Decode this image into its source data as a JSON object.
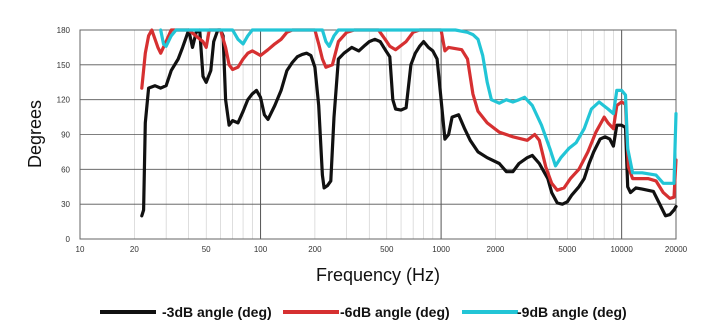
{
  "chart_data": {
    "type": "line",
    "xlabel": "Frequency (Hz)",
    "ylabel": "Degrees",
    "x_scale": "log",
    "xlim": [
      10,
      20000
    ],
    "ylim": [
      0,
      180
    ],
    "x_ticks": [
      10,
      20,
      50,
      100,
      200,
      500,
      1000,
      2000,
      5000,
      10000,
      20000
    ],
    "x_tick_labels": [
      "10",
      "20",
      "50",
      "100",
      "200",
      "500",
      "1000",
      "2000",
      "5000",
      "10000",
      "20000"
    ],
    "y_ticks": [
      0,
      30,
      60,
      90,
      120,
      150,
      180
    ],
    "y_tick_labels": [
      "0",
      "30",
      "60",
      "90",
      "120",
      "150",
      "180"
    ],
    "grid": true,
    "legend_position": "bottom",
    "series": [
      {
        "name": "-3dB angle (deg)",
        "color": "#111111",
        "points": [
          [
            22,
            20
          ],
          [
            22.5,
            25
          ],
          [
            23,
            100
          ],
          [
            24,
            130
          ],
          [
            26,
            132
          ],
          [
            28,
            130
          ],
          [
            30,
            132
          ],
          [
            32,
            145
          ],
          [
            35,
            155
          ],
          [
            37,
            165
          ],
          [
            39,
            175
          ],
          [
            40,
            180
          ],
          [
            42,
            165
          ],
          [
            44,
            178
          ],
          [
            46,
            180
          ],
          [
            48,
            140
          ],
          [
            50,
            135
          ],
          [
            53,
            145
          ],
          [
            55,
            170
          ],
          [
            58,
            180
          ],
          [
            60,
            180
          ],
          [
            62,
            175
          ],
          [
            64,
            120
          ],
          [
            67,
            98
          ],
          [
            70,
            102
          ],
          [
            75,
            100
          ],
          [
            80,
            110
          ],
          [
            85,
            120
          ],
          [
            90,
            125
          ],
          [
            95,
            128
          ],
          [
            100,
            122
          ],
          [
            105,
            107
          ],
          [
            110,
            103
          ],
          [
            120,
            115
          ],
          [
            130,
            128
          ],
          [
            140,
            145
          ],
          [
            150,
            152
          ],
          [
            160,
            157
          ],
          [
            170,
            159
          ],
          [
            180,
            160
          ],
          [
            190,
            158
          ],
          [
            200,
            148
          ],
          [
            210,
            115
          ],
          [
            220,
            55
          ],
          [
            225,
            44
          ],
          [
            235,
            46
          ],
          [
            245,
            50
          ],
          [
            255,
            105
          ],
          [
            270,
            155
          ],
          [
            290,
            160
          ],
          [
            320,
            165
          ],
          [
            350,
            162
          ],
          [
            380,
            167
          ],
          [
            400,
            170
          ],
          [
            430,
            172
          ],
          [
            460,
            170
          ],
          [
            490,
            163
          ],
          [
            520,
            157
          ],
          [
            540,
            120
          ],
          [
            560,
            112
          ],
          [
            600,
            111
          ],
          [
            640,
            113
          ],
          [
            680,
            150
          ],
          [
            720,
            160
          ],
          [
            760,
            166
          ],
          [
            800,
            170
          ],
          [
            850,
            165
          ],
          [
            900,
            162
          ],
          [
            950,
            155
          ],
          [
            1000,
            120
          ],
          [
            1050,
            86
          ],
          [
            1100,
            90
          ],
          [
            1150,
            105
          ],
          [
            1250,
            107
          ],
          [
            1350,
            95
          ],
          [
            1450,
            85
          ],
          [
            1600,
            75
          ],
          [
            1800,
            70
          ],
          [
            2100,
            65
          ],
          [
            2300,
            58
          ],
          [
            2500,
            58
          ],
          [
            2700,
            65
          ],
          [
            3000,
            70
          ],
          [
            3200,
            72
          ],
          [
            3500,
            65
          ],
          [
            3900,
            52
          ],
          [
            4100,
            40
          ],
          [
            4400,
            31
          ],
          [
            4700,
            30
          ],
          [
            5000,
            32
          ],
          [
            5300,
            38
          ],
          [
            5800,
            45
          ],
          [
            6200,
            52
          ],
          [
            6600,
            65
          ],
          [
            7000,
            75
          ],
          [
            7600,
            86
          ],
          [
            8100,
            88
          ],
          [
            8600,
            86
          ],
          [
            9000,
            80
          ],
          [
            9400,
            98
          ],
          [
            10000,
            98
          ],
          [
            10500,
            96
          ],
          [
            10800,
            45
          ],
          [
            11200,
            40
          ],
          [
            12000,
            44
          ],
          [
            13000,
            43
          ],
          [
            15000,
            41
          ],
          [
            16500,
            28
          ],
          [
            17500,
            20
          ],
          [
            18500,
            21
          ],
          [
            19500,
            25
          ],
          [
            20000,
            28
          ]
        ]
      },
      {
        "name": "-6dB angle (deg)",
        "color": "#d63031",
        "points": [
          [
            22,
            130
          ],
          [
            23,
            160
          ],
          [
            24,
            175
          ],
          [
            25,
            180
          ],
          [
            27,
            165
          ],
          [
            28,
            160
          ],
          [
            30,
            170
          ],
          [
            32,
            180
          ],
          [
            40,
            180
          ],
          [
            48,
            170
          ],
          [
            50,
            165
          ],
          [
            52,
            180
          ],
          [
            60,
            180
          ],
          [
            64,
            165
          ],
          [
            67,
            150
          ],
          [
            70,
            146
          ],
          [
            75,
            148
          ],
          [
            80,
            155
          ],
          [
            85,
            160
          ],
          [
            90,
            162
          ],
          [
            95,
            160
          ],
          [
            100,
            158
          ],
          [
            110,
            163
          ],
          [
            120,
            168
          ],
          [
            130,
            172
          ],
          [
            140,
            178
          ],
          [
            150,
            180
          ],
          [
            200,
            180
          ],
          [
            210,
            168
          ],
          [
            220,
            155
          ],
          [
            230,
            148
          ],
          [
            250,
            150
          ],
          [
            270,
            170
          ],
          [
            300,
            178
          ],
          [
            330,
            180
          ],
          [
            450,
            180
          ],
          [
            500,
            170
          ],
          [
            520,
            166
          ],
          [
            560,
            163
          ],
          [
            640,
            170
          ],
          [
            700,
            178
          ],
          [
            760,
            180
          ],
          [
            1000,
            180
          ],
          [
            1050,
            162
          ],
          [
            1100,
            165
          ],
          [
            1300,
            163
          ],
          [
            1400,
            155
          ],
          [
            1500,
            125
          ],
          [
            1600,
            110
          ],
          [
            1800,
            100
          ],
          [
            2100,
            92
          ],
          [
            2500,
            88
          ],
          [
            3000,
            85
          ],
          [
            3300,
            90
          ],
          [
            3500,
            85
          ],
          [
            3800,
            62
          ],
          [
            4100,
            48
          ],
          [
            4400,
            42
          ],
          [
            4800,
            44
          ],
          [
            5200,
            52
          ],
          [
            5800,
            60
          ],
          [
            6500,
            75
          ],
          [
            7200,
            92
          ],
          [
            8000,
            105
          ],
          [
            8400,
            100
          ],
          [
            9000,
            95
          ],
          [
            9400,
            115
          ],
          [
            10000,
            118
          ],
          [
            10500,
            116
          ],
          [
            10900,
            62
          ],
          [
            11500,
            52
          ],
          [
            14000,
            52
          ],
          [
            15500,
            50
          ],
          [
            17000,
            40
          ],
          [
            18500,
            35
          ],
          [
            19500,
            36
          ],
          [
            20000,
            68
          ]
        ]
      },
      {
        "name": "-9dB angle (deg)",
        "color": "#22c5d6",
        "points": [
          [
            28,
            180
          ],
          [
            29,
            168
          ],
          [
            30,
            166
          ],
          [
            32,
            175
          ],
          [
            34,
            180
          ],
          [
            70,
            180
          ],
          [
            75,
            172
          ],
          [
            80,
            168
          ],
          [
            85,
            175
          ],
          [
            90,
            180
          ],
          [
            220,
            180
          ],
          [
            230,
            170
          ],
          [
            240,
            166
          ],
          [
            255,
            175
          ],
          [
            270,
            180
          ],
          [
            1000,
            180
          ],
          [
            1200,
            180
          ],
          [
            1400,
            178
          ],
          [
            1500,
            176
          ],
          [
            1600,
            172
          ],
          [
            1700,
            158
          ],
          [
            1800,
            135
          ],
          [
            1900,
            120
          ],
          [
            2100,
            117
          ],
          [
            2300,
            120
          ],
          [
            2500,
            118
          ],
          [
            2700,
            120
          ],
          [
            2900,
            122
          ],
          [
            3200,
            115
          ],
          [
            3600,
            98
          ],
          [
            4000,
            78
          ],
          [
            4300,
            63
          ],
          [
            4600,
            70
          ],
          [
            5100,
            78
          ],
          [
            5600,
            83
          ],
          [
            6200,
            95
          ],
          [
            6800,
            112
          ],
          [
            7500,
            118
          ],
          [
            8400,
            112
          ],
          [
            9000,
            108
          ],
          [
            9400,
            128
          ],
          [
            10000,
            128
          ],
          [
            10500,
            124
          ],
          [
            10800,
            78
          ],
          [
            11500,
            57
          ],
          [
            13000,
            57
          ],
          [
            15500,
            55
          ],
          [
            17000,
            48
          ],
          [
            19500,
            48
          ],
          [
            20000,
            108
          ]
        ]
      }
    ]
  }
}
